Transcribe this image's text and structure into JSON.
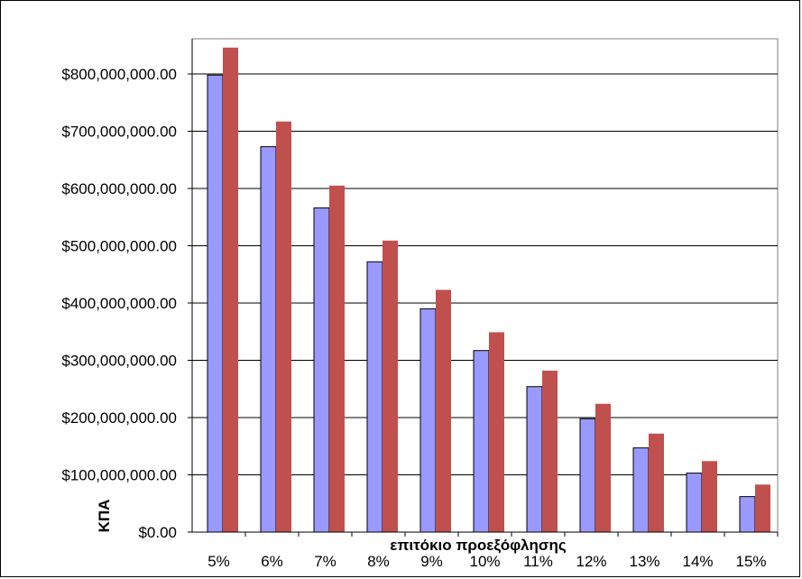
{
  "chart_data": {
    "type": "bar",
    "title": "",
    "xlabel": "επιτόκιο προεξόφλησης",
    "ylabel": "ΚΠΑ",
    "categories": [
      "5%",
      "6%",
      "7%",
      "8%",
      "9%",
      "10%",
      "11%",
      "12%",
      "13%",
      "14%",
      "15%"
    ],
    "y_ticks": [
      "$0.00",
      "$100,000,000.00",
      "$200,000,000.00",
      "$300,000,000.00",
      "$400,000,000.00",
      "$500,000,000.00",
      "$600,000,000.00",
      "$700,000,000.00",
      "$800,000,000.00"
    ],
    "ylim": [
      0,
      800000000
    ],
    "grid": true,
    "legend": "none",
    "series": [
      {
        "color": "#9999ff",
        "values": [
          798000000,
          673000000,
          566000000,
          472000000,
          390000000,
          317000000,
          254000000,
          198000000,
          147000000,
          103000000,
          62000000
        ]
      },
      {
        "color": "#c0504d",
        "values": [
          846000000,
          717000000,
          605000000,
          509000000,
          423000000,
          349000000,
          282000000,
          224000000,
          172000000,
          124000000,
          83000000
        ]
      }
    ]
  }
}
